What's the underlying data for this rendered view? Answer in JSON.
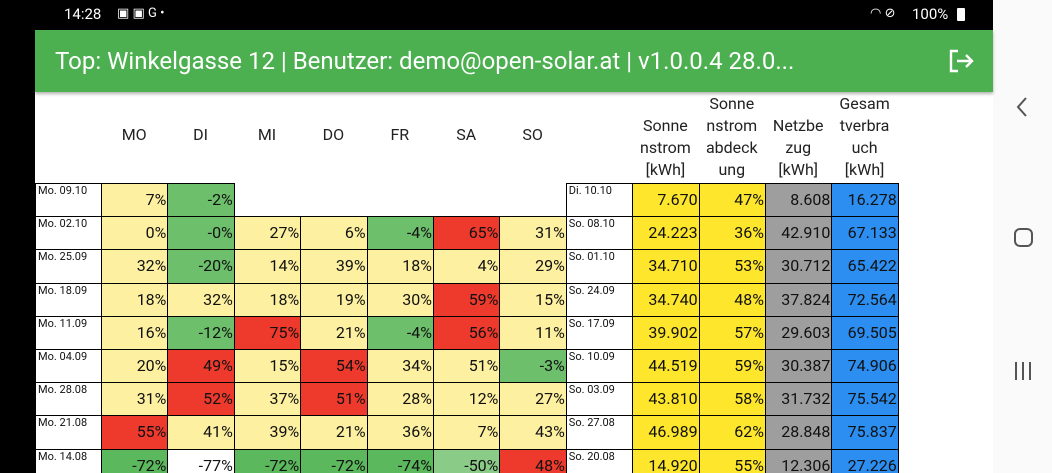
{
  "status_bar": {
    "time": "14:28",
    "battery": "100%"
  },
  "app_bar": {
    "title": "Top: Winkelgasse 12 | Benutzer: demo@open-solar.at | v1.0.0.4  28.0..."
  },
  "table": {
    "day_headers": [
      "MO",
      "DI",
      "MI",
      "DO",
      "FR",
      "SA",
      "SO"
    ],
    "summary_headers": [
      [
        "Sonne",
        "nstrom",
        "[kWh]"
      ],
      [
        "Sonne",
        "nstrom",
        "abdeck",
        "ung"
      ],
      [
        "Netzbe",
        "zug",
        "[kWh]"
      ],
      [
        "Gesam",
        "tverbra",
        "uch",
        "[kWh]"
      ]
    ],
    "summary_colors": [
      "#fde62b",
      "#fde62b",
      "#9e9e9e",
      "#2b8ef0"
    ],
    "rows": [
      {
        "week": "Mo. 09.10",
        "days": [
          {
            "text": "7%",
            "color": "#fdf0a0"
          },
          {
            "text": "-2%",
            "color": "#6dbf6b"
          }
        ],
        "summary_date": "Di. 10.10",
        "summary": [
          "7.670",
          "47%",
          "8.608",
          "16.278"
        ]
      },
      {
        "week": "Mo. 02.10",
        "days": [
          {
            "text": "0%",
            "color": "#fdf0a0"
          },
          {
            "text": "-0%",
            "color": "#6dbf6b"
          },
          {
            "text": "27%",
            "color": "#fdf0a0"
          },
          {
            "text": "6%",
            "color": "#fdf0a0"
          },
          {
            "text": "-4%",
            "color": "#6dbf6b"
          },
          {
            "text": "65%",
            "color": "#ee3a2c"
          },
          {
            "text": "31%",
            "color": "#fdf0a0"
          }
        ],
        "summary_date": "So. 08.10",
        "summary": [
          "24.223",
          "36%",
          "42.910",
          "67.133"
        ]
      },
      {
        "week": "Mo. 25.09",
        "days": [
          {
            "text": "32%",
            "color": "#fdf0a0"
          },
          {
            "text": "-20%",
            "color": "#6dbf6b"
          },
          {
            "text": "14%",
            "color": "#fdf0a0"
          },
          {
            "text": "39%",
            "color": "#fdf0a0"
          },
          {
            "text": "18%",
            "color": "#fdf0a0"
          },
          {
            "text": "4%",
            "color": "#fdf0a0"
          },
          {
            "text": "29%",
            "color": "#fdf0a0"
          }
        ],
        "summary_date": "So. 01.10",
        "summary": [
          "34.710",
          "53%",
          "30.712",
          "65.422"
        ]
      },
      {
        "week": "Mo. 18.09",
        "days": [
          {
            "text": "18%",
            "color": "#fdf0a0"
          },
          {
            "text": "32%",
            "color": "#fdf0a0"
          },
          {
            "text": "18%",
            "color": "#fdf0a0"
          },
          {
            "text": "19%",
            "color": "#fdf0a0"
          },
          {
            "text": "30%",
            "color": "#fdf0a0"
          },
          {
            "text": "59%",
            "color": "#ee3a2c"
          },
          {
            "text": "15%",
            "color": "#fdf0a0"
          }
        ],
        "summary_date": "So. 24.09",
        "summary": [
          "34.740",
          "48%",
          "37.824",
          "72.564"
        ]
      },
      {
        "week": "Mo. 11.09",
        "days": [
          {
            "text": "16%",
            "color": "#fdf0a0"
          },
          {
            "text": "-12%",
            "color": "#6dbf6b"
          },
          {
            "text": "75%",
            "color": "#ee3a2c"
          },
          {
            "text": "21%",
            "color": "#fdf0a0"
          },
          {
            "text": "-4%",
            "color": "#6dbf6b"
          },
          {
            "text": "56%",
            "color": "#ee3a2c"
          },
          {
            "text": "11%",
            "color": "#fdf0a0"
          }
        ],
        "summary_date": "So. 17.09",
        "summary": [
          "39.902",
          "57%",
          "29.603",
          "69.505"
        ]
      },
      {
        "week": "Mo. 04.09",
        "days": [
          {
            "text": "20%",
            "color": "#fdf0a0"
          },
          {
            "text": "49%",
            "color": "#ee3a2c"
          },
          {
            "text": "15%",
            "color": "#fdf0a0"
          },
          {
            "text": "54%",
            "color": "#ee3a2c"
          },
          {
            "text": "34%",
            "color": "#fdf0a0"
          },
          {
            "text": "51%",
            "color": "#fdf0a0"
          },
          {
            "text": "-3%",
            "color": "#6dbf6b"
          }
        ],
        "summary_date": "So. 10.09",
        "summary": [
          "44.519",
          "59%",
          "30.387",
          "74.906"
        ]
      },
      {
        "week": "Mo. 28.08",
        "days": [
          {
            "text": "31%",
            "color": "#fdf0a0"
          },
          {
            "text": "52%",
            "color": "#ee3a2c"
          },
          {
            "text": "37%",
            "color": "#fdf0a0"
          },
          {
            "text": "51%",
            "color": "#ee3a2c"
          },
          {
            "text": "28%",
            "color": "#fdf0a0"
          },
          {
            "text": "12%",
            "color": "#fdf0a0"
          },
          {
            "text": "27%",
            "color": "#fdf0a0"
          }
        ],
        "summary_date": "So. 03.09",
        "summary": [
          "43.810",
          "58%",
          "31.732",
          "75.542"
        ]
      },
      {
        "week": "Mo. 21.08",
        "days": [
          {
            "text": "55%",
            "color": "#ee3a2c"
          },
          {
            "text": "41%",
            "color": "#fdf0a0"
          },
          {
            "text": "39%",
            "color": "#fdf0a0"
          },
          {
            "text": "21%",
            "color": "#fdf0a0"
          },
          {
            "text": "36%",
            "color": "#fdf0a0"
          },
          {
            "text": "7%",
            "color": "#fdf0a0"
          },
          {
            "text": "43%",
            "color": "#fdf0a0"
          }
        ],
        "summary_date": "So. 27.08",
        "summary": [
          "46.989",
          "62%",
          "28.848",
          "75.837"
        ]
      },
      {
        "week": "Mo. 14.08",
        "days": [
          {
            "text": "-72%",
            "color": "#5cb85c"
          },
          {
            "text": "-77%",
            "color": "#ffffff"
          },
          {
            "text": "-72%",
            "color": "#5cb85c"
          },
          {
            "text": "-72%",
            "color": "#5cb85c"
          },
          {
            "text": "-74%",
            "color": "#5cb85c"
          },
          {
            "text": "-50%",
            "color": "#8bcb88"
          },
          {
            "text": "48%",
            "color": "#ee3a2c"
          }
        ],
        "summary_date": "So. 20.08",
        "summary": [
          "14.920",
          "55%",
          "12.306",
          "27.226"
        ]
      }
    ]
  }
}
